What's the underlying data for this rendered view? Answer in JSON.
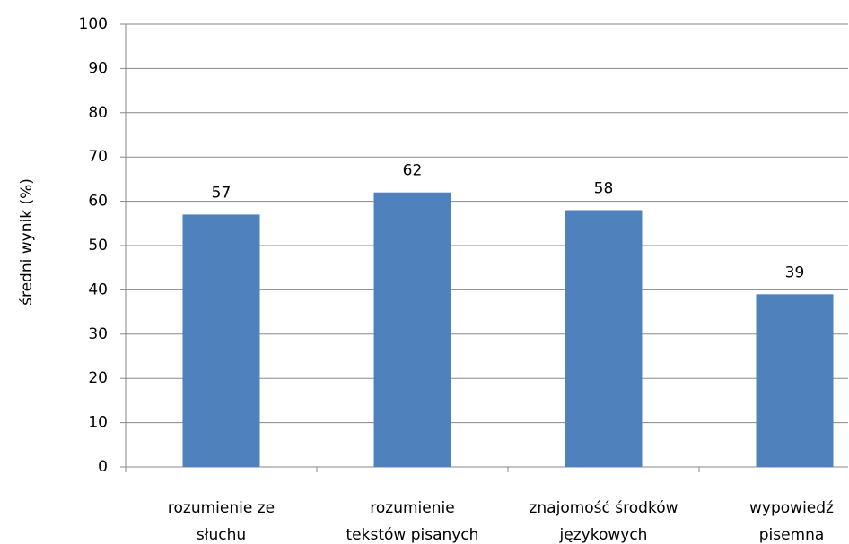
{
  "chart_data": {
    "type": "bar",
    "y_label": "średni wynik (%)",
    "categories": [
      "rozumienie ze\nsłuchu",
      "rozumienie\ntekstów pisanych",
      "znajomość środków\njęzykowych",
      "wypowiedź\npisemna"
    ],
    "values": [
      57,
      62,
      58,
      39
    ],
    "color": "#4f81bd",
    "ylim": [
      0,
      100
    ],
    "yticks": [
      0,
      10,
      20,
      30,
      40,
      50,
      60,
      70,
      80,
      90,
      100
    ],
    "grid": true
  }
}
